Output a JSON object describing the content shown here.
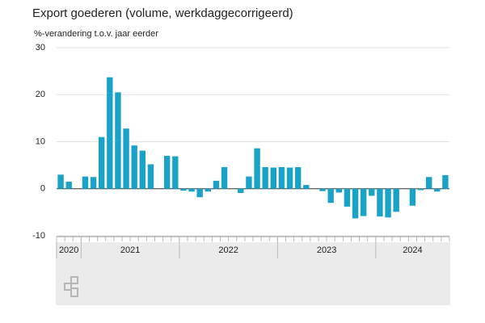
{
  "chart_data": {
    "type": "bar",
    "title": "Export goederen (volume, werkdaggecorrigeerd)",
    "subtitle": "%-verandering t.o.v. jaar eerder",
    "color": "#1aa3c9",
    "ylim": [
      -10,
      30
    ],
    "yticks": [
      -10,
      0,
      10,
      20,
      30
    ],
    "grid": true,
    "year_groups": [
      {
        "label": "2020",
        "months": 3
      },
      {
        "label": "2021",
        "months": 12
      },
      {
        "label": "2022",
        "months": 12
      },
      {
        "label": "2023",
        "months": 12
      },
      {
        "label": "2024",
        "months": 9
      }
    ],
    "values": [
      3.0,
      1.5,
      0,
      2.6,
      2.5,
      11.0,
      23.7,
      20.5,
      12.8,
      9.2,
      8.1,
      5.2,
      0,
      7.0,
      6.9,
      -0.4,
      -0.6,
      -1.8,
      -0.6,
      1.7,
      4.6,
      0,
      -0.9,
      2.6,
      8.6,
      4.6,
      4.5,
      4.6,
      4.5,
      4.6,
      0.8,
      0,
      -0.5,
      -3.0,
      -0.8,
      -3.8,
      -6.3,
      -5.8,
      -1.5,
      -5.9,
      -6.1,
      -4.9,
      0,
      -3.6,
      -0.3,
      2.5,
      -0.6,
      2.9
    ]
  }
}
